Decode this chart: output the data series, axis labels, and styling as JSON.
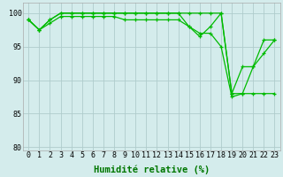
{
  "series": [
    [
      99,
      97.5,
      99,
      100,
      100,
      100,
      100,
      100,
      100,
      100,
      100,
      100,
      100,
      100,
      100,
      100,
      100,
      100,
      100,
      88,
      92,
      92,
      96,
      96
    ],
    [
      99,
      97.5,
      99,
      100,
      100,
      100,
      100,
      100,
      100,
      100,
      100,
      100,
      100,
      100,
      100,
      98,
      96.5,
      98,
      100,
      88,
      88,
      92,
      94,
      96
    ],
    [
      99,
      97.5,
      98.5,
      99.5,
      99.5,
      99.5,
      99.5,
      99.5,
      99.5,
      99,
      99,
      99,
      99,
      99,
      99,
      98,
      97,
      97,
      95,
      87.5,
      88,
      88,
      88,
      88
    ]
  ],
  "line_color": "#00bb00",
  "marker": "+",
  "markersize": 3.5,
  "linewidth": 0.9,
  "markeredgewidth": 0.9,
  "xlim": [
    -0.5,
    23.5
  ],
  "ylim": [
    79.5,
    101.5
  ],
  "yticks": [
    80,
    85,
    90,
    95,
    100
  ],
  "xticks": [
    0,
    1,
    2,
    3,
    4,
    5,
    6,
    7,
    8,
    9,
    10,
    11,
    12,
    13,
    14,
    15,
    16,
    17,
    18,
    19,
    20,
    21,
    22,
    23
  ],
  "xlabel": "Humidité relative (%)",
  "bg_color": "#d4ecec",
  "grid_color": "#b0cccc",
  "tick_fontsize": 6,
  "xlabel_fontsize": 7.5,
  "xlabel_color": "#007700"
}
